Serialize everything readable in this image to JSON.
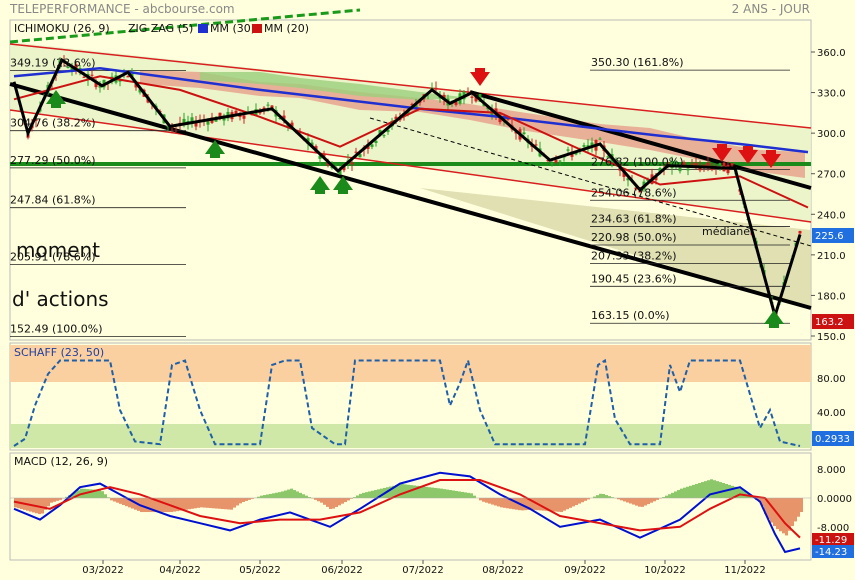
{
  "header": {
    "title": "TELEPERFORMANCE - abcbourse.com",
    "period": "2 ANS - JOUR"
  },
  "legend": [
    {
      "label": "ICHIMOKU (26, 9)",
      "color": "#111111"
    },
    {
      "label": "ZIG ZAG (5)",
      "color": "#111111"
    },
    {
      "label": "MM (30)",
      "color": "#1f2fd0"
    },
    {
      "label": "MM (20)",
      "color": "#cc1111"
    }
  ],
  "handwritten": [
    "moment",
    "d' actions"
  ],
  "mediane_label": "médiane",
  "price_axis": {
    "ticks": [
      360.0,
      330.0,
      300.0,
      270.0,
      240.0,
      210.0,
      180.0,
      150.0
    ],
    "labels": [
      "360.0",
      "330.0",
      "300.0",
      "270.0",
      "240.0",
      "210.0",
      "180.0",
      "150.0"
    ],
    "current": "225.6",
    "low_marker": "163.2"
  },
  "schaff_axis": {
    "ticks": [
      80.0,
      40.0
    ],
    "labels": [
      "80.00",
      "40.00"
    ],
    "current": "0.2933"
  },
  "macd_axis": {
    "ticks": [
      8.0,
      0.0,
      -8.0
    ],
    "labels": [
      "8.000",
      "0.0000",
      "-8.000"
    ],
    "current_a": "-11.29",
    "current_b": "-14.23"
  },
  "left_fib": [
    {
      "level": 349.19,
      "text": "349.19  (23.6%)"
    },
    {
      "level": 304.76,
      "text": "304.76  (38.2%)"
    },
    {
      "level": 277.29,
      "text": "277.29  (50.0%)"
    },
    {
      "level": 247.84,
      "text": "247.84  (61.8%)"
    },
    {
      "level": 205.91,
      "text": "205.91  (78.6%)"
    },
    {
      "level": 152.49,
      "text": "152.49  (100.0%)"
    }
  ],
  "right_fib": [
    {
      "level": 350.3,
      "text": "350.30  (161.8%)"
    },
    {
      "level": 276.82,
      "text": "276.82  (100.0%)"
    },
    {
      "level": 254.06,
      "text": "254.06  (78.6%)"
    },
    {
      "level": 234.63,
      "text": "234.63  (61.8%)"
    },
    {
      "level": 220.98,
      "text": "220.98  (50.0%)"
    },
    {
      "level": 207.33,
      "text": "207.33  (38.2%)"
    },
    {
      "level": 190.45,
      "text": "190.45  (23.6%)"
    },
    {
      "level": 163.15,
      "text": "163.15  (0.0%)"
    }
  ],
  "schaff": {
    "label": "SCHAFF (23, 50)",
    "upper": 75,
    "lower": 25
  },
  "macd": {
    "label": "MACD (12, 26, 9)"
  },
  "months": [
    "03/2022",
    "04/2022",
    "05/2022",
    "06/2022",
    "07/2022",
    "08/2022",
    "09/2022",
    "10/2022",
    "11/2022"
  ],
  "chart_data": {
    "type": "line",
    "title": "TELEPERFORMANCE - abcbourse.com",
    "ylim": [
      150,
      375
    ],
    "zigzag": [
      {
        "x": "02/2022",
        "y": 338
      },
      {
        "x": "02/2022",
        "y": 300
      },
      {
        "x": "03/2022",
        "y": 354
      },
      {
        "x": "03/2022",
        "y": 335
      },
      {
        "x": "04/2022",
        "y": 345
      },
      {
        "x": "04/2022",
        "y": 305
      },
      {
        "x": "05/2022",
        "y": 318
      },
      {
        "x": "06/2022",
        "y": 272
      },
      {
        "x": "07/2022",
        "y": 332
      },
      {
        "x": "07/2022",
        "y": 322
      },
      {
        "x": "08/2022",
        "y": 330
      },
      {
        "x": "09/2022",
        "y": 280
      },
      {
        "x": "09/2022",
        "y": 292
      },
      {
        "x": "10/2022",
        "y": 258
      },
      {
        "x": "10/2022",
        "y": 276
      },
      {
        "x": "11/2022",
        "y": 274
      },
      {
        "x": "11/2022",
        "y": 165
      },
      {
        "x": "11/2022",
        "y": 225
      }
    ],
    "mm30": [
      {
        "x": "02/2022",
        "y": 342
      },
      {
        "x": "03/2022",
        "y": 348
      },
      {
        "x": "04/2022",
        "y": 340
      },
      {
        "x": "05/2022",
        "y": 332
      },
      {
        "x": "06/2022",
        "y": 325
      },
      {
        "x": "07/2022",
        "y": 318
      },
      {
        "x": "08/2022",
        "y": 312
      },
      {
        "x": "09/2022",
        "y": 305
      },
      {
        "x": "10/2022",
        "y": 298
      },
      {
        "x": "11/2022",
        "y": 292
      },
      {
        "x": "11/2022",
        "y": 286
      }
    ],
    "mm20": [
      {
        "x": "02/2022",
        "y": 325
      },
      {
        "x": "03/2022",
        "y": 342
      },
      {
        "x": "04/2022",
        "y": 332
      },
      {
        "x": "05/2022",
        "y": 312
      },
      {
        "x": "06/2022",
        "y": 290
      },
      {
        "x": "07/2022",
        "y": 318
      },
      {
        "x": "08/2022",
        "y": 315
      },
      {
        "x": "09/2022",
        "y": 288
      },
      {
        "x": "10/2022",
        "y": 262
      },
      {
        "x": "11/2022",
        "y": 268
      },
      {
        "x": "11/2022",
        "y": 245
      }
    ]
  }
}
